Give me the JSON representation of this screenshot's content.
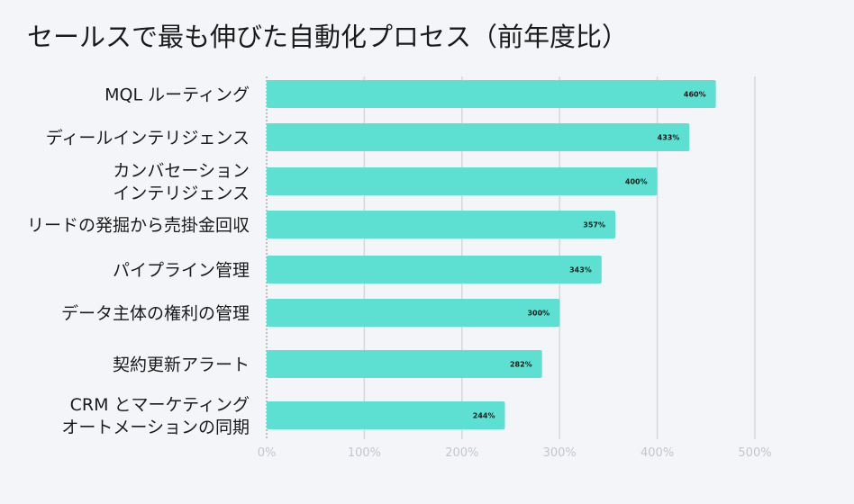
{
  "chart_data": {
    "type": "bar",
    "orientation": "horizontal",
    "title": "セールスで最も伸びた自動化プロセス（前年度比）",
    "xlabel": "",
    "ylabel": "",
    "categories": [
      [
        "MQL ルーティング"
      ],
      [
        "ディールインテリジェンス"
      ],
      [
        "カンバセーション",
        "インテリジェンス"
      ],
      [
        "リードの発掘から売掛金回収"
      ],
      [
        "パイプライン管理"
      ],
      [
        "データ主体の権利の管理"
      ],
      [
        "契約更新アラート"
      ],
      [
        "CRM とマーケティング",
        "オートメーションの同期"
      ]
    ],
    "values": [
      460,
      433,
      400,
      357,
      343,
      300,
      282,
      244
    ],
    "data_labels": [
      "460%",
      "433%",
      "400%",
      "357%",
      "343%",
      "300%",
      "282%",
      "244%"
    ],
    "xlim": [
      0,
      500
    ],
    "x_ticks": [
      0,
      100,
      200,
      300,
      400,
      500
    ],
    "x_tick_labels": [
      "0%",
      "100%",
      "200%",
      "300%",
      "400%",
      "500%"
    ],
    "grid": true,
    "legend": "none",
    "colors": {
      "bar": "#5ddfd1",
      "grid": "#d6d7dc",
      "baseline": "#888888",
      "background": "#f4f5f9",
      "text": "#1a1a1a",
      "tick_text": "#c4c6cc"
    }
  }
}
